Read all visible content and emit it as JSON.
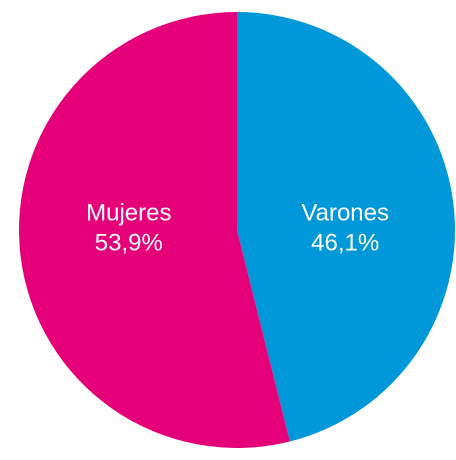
{
  "chart_data": {
    "type": "pie",
    "categories": [
      "Varones",
      "Mujeres"
    ],
    "values": [
      46.1,
      53.9
    ],
    "value_labels": [
      "46,1%",
      "53,9%"
    ],
    "colors": [
      "#0098d8",
      "#e5007a"
    ]
  }
}
